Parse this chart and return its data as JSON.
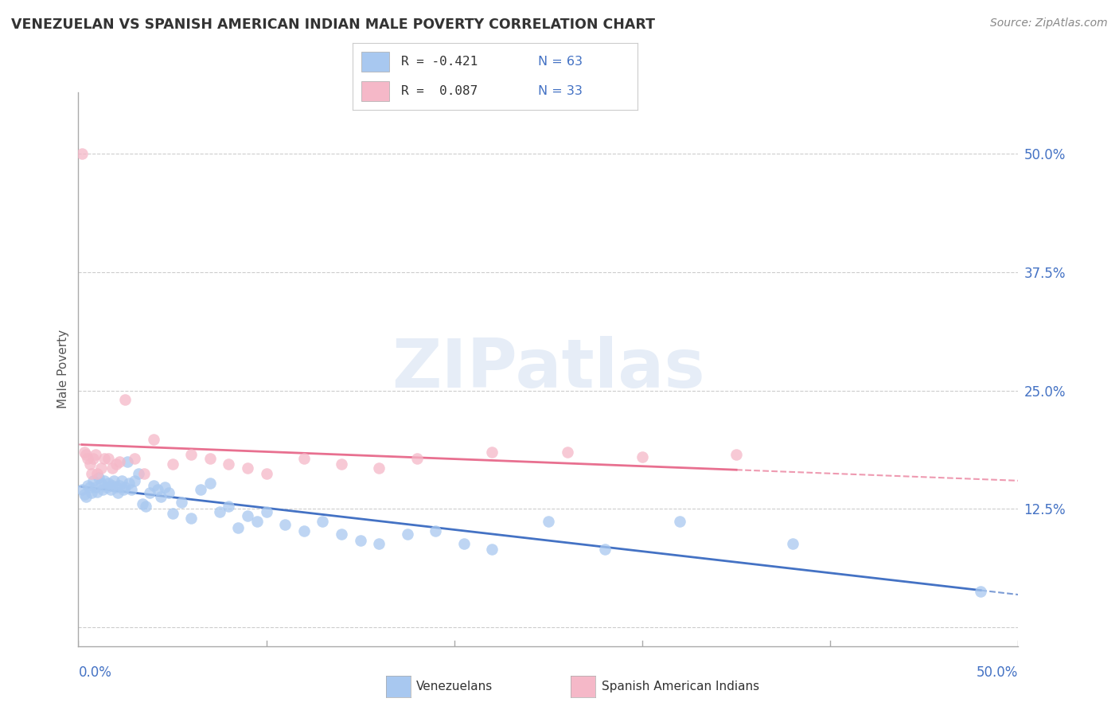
{
  "title": "VENEZUELAN VS SPANISH AMERICAN INDIAN MALE POVERTY CORRELATION CHART",
  "source": "Source: ZipAtlas.com",
  "ylabel": "Male Poverty",
  "xlim": [
    0.0,
    0.5
  ],
  "ylim": [
    -0.02,
    0.565
  ],
  "y_ticks": [
    0.0,
    0.125,
    0.25,
    0.375,
    0.5
  ],
  "y_tick_labels": [
    "",
    "12.5%",
    "25.0%",
    "37.5%",
    "50.0%"
  ],
  "watermark": "ZIPatlas",
  "blue_color": "#A8C8F0",
  "pink_color": "#F5B8C8",
  "blue_line_color": "#4472C4",
  "pink_line_color": "#E87090",
  "background": "#FFFFFF",
  "grid_color": "#CCCCCC",
  "venezuelan_x": [
    0.002,
    0.003,
    0.004,
    0.005,
    0.006,
    0.007,
    0.008,
    0.009,
    0.01,
    0.011,
    0.012,
    0.013,
    0.014,
    0.015,
    0.016,
    0.017,
    0.018,
    0.019,
    0.02,
    0.021,
    0.022,
    0.023,
    0.024,
    0.025,
    0.026,
    0.027,
    0.028,
    0.03,
    0.032,
    0.034,
    0.036,
    0.038,
    0.04,
    0.042,
    0.044,
    0.046,
    0.048,
    0.05,
    0.055,
    0.06,
    0.065,
    0.07,
    0.075,
    0.08,
    0.085,
    0.09,
    0.095,
    0.1,
    0.11,
    0.12,
    0.13,
    0.14,
    0.15,
    0.16,
    0.175,
    0.19,
    0.205,
    0.22,
    0.25,
    0.28,
    0.32,
    0.38,
    0.48
  ],
  "venezuelan_y": [
    0.145,
    0.14,
    0.138,
    0.15,
    0.148,
    0.142,
    0.155,
    0.148,
    0.143,
    0.158,
    0.152,
    0.145,
    0.155,
    0.148,
    0.152,
    0.145,
    0.15,
    0.155,
    0.148,
    0.142,
    0.15,
    0.155,
    0.145,
    0.148,
    0.175,
    0.152,
    0.145,
    0.155,
    0.162,
    0.13,
    0.128,
    0.142,
    0.15,
    0.145,
    0.138,
    0.148,
    0.142,
    0.12,
    0.132,
    0.115,
    0.145,
    0.152,
    0.122,
    0.128,
    0.105,
    0.118,
    0.112,
    0.122,
    0.108,
    0.102,
    0.112,
    0.098,
    0.092,
    0.088,
    0.098,
    0.102,
    0.088,
    0.082,
    0.112,
    0.082,
    0.112,
    0.088,
    0.038
  ],
  "spanish_indian_x": [
    0.002,
    0.003,
    0.004,
    0.005,
    0.006,
    0.007,
    0.008,
    0.009,
    0.01,
    0.012,
    0.014,
    0.016,
    0.018,
    0.02,
    0.022,
    0.025,
    0.03,
    0.035,
    0.04,
    0.05,
    0.06,
    0.07,
    0.08,
    0.09,
    0.1,
    0.12,
    0.14,
    0.16,
    0.18,
    0.22,
    0.26,
    0.3,
    0.35
  ],
  "spanish_indian_y": [
    0.5,
    0.185,
    0.182,
    0.178,
    0.172,
    0.162,
    0.178,
    0.182,
    0.162,
    0.168,
    0.178,
    0.178,
    0.168,
    0.172,
    0.175,
    0.24,
    0.178,
    0.162,
    0.198,
    0.172,
    0.182,
    0.178,
    0.172,
    0.168,
    0.162,
    0.178,
    0.172,
    0.168,
    0.178,
    0.185,
    0.185,
    0.18,
    0.182
  ]
}
